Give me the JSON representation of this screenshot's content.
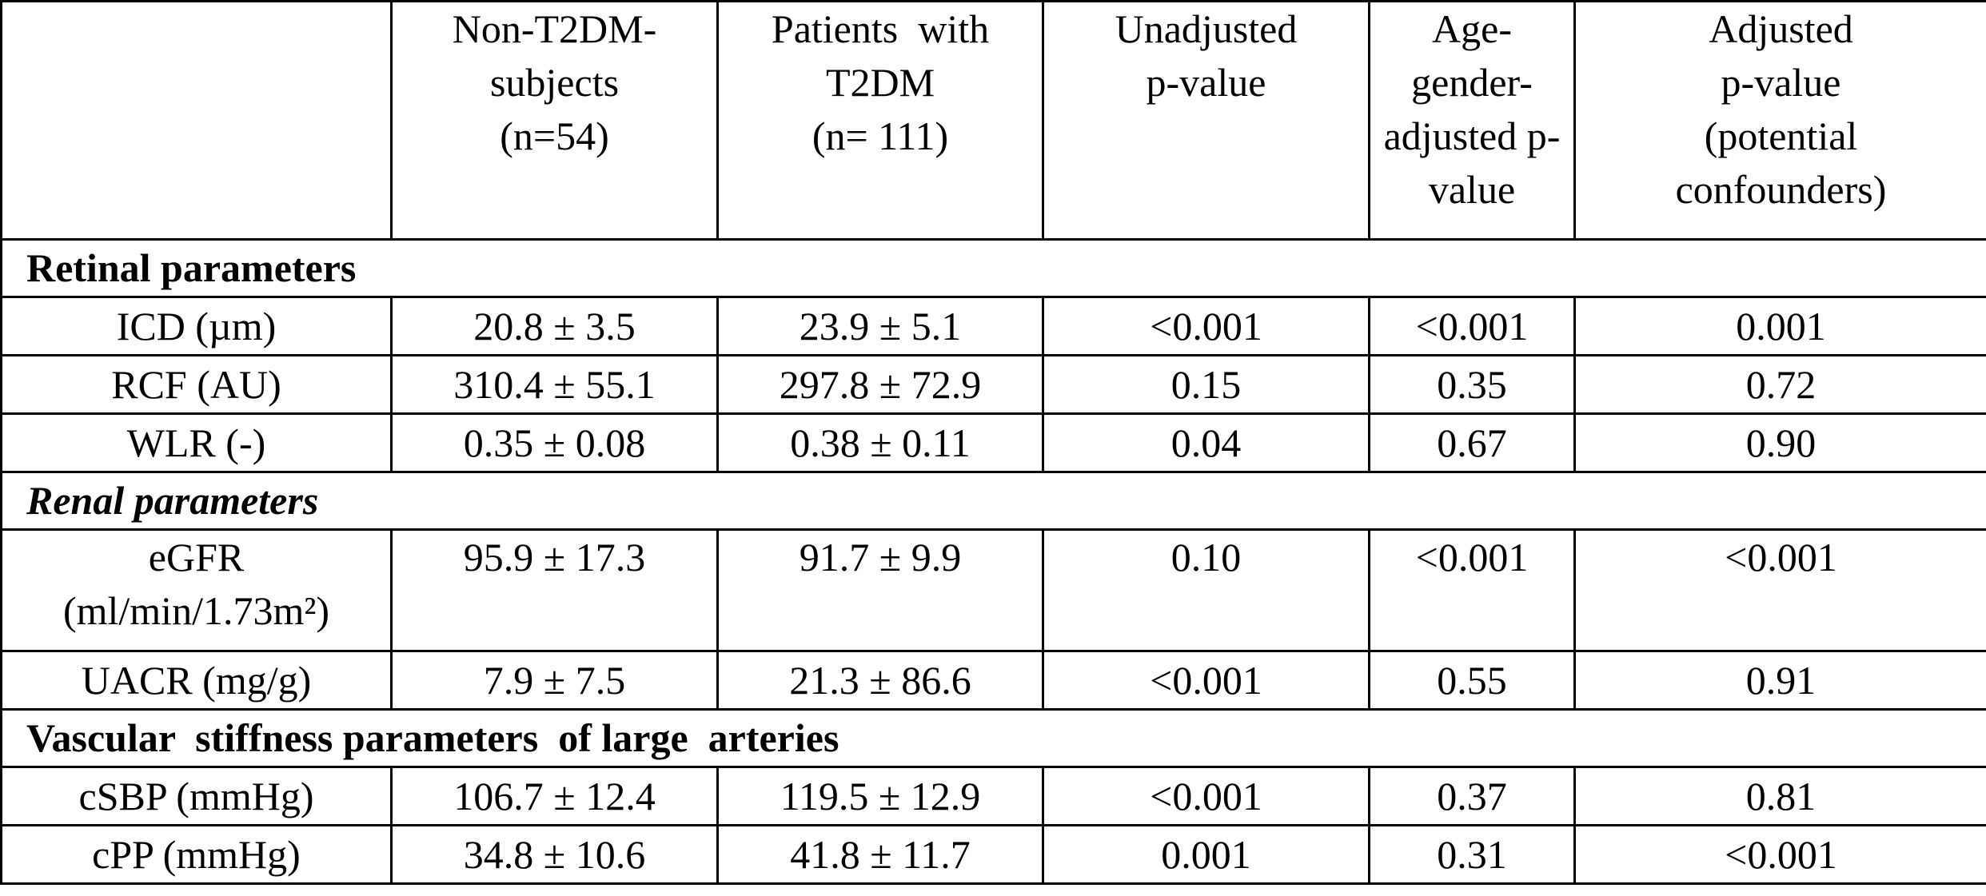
{
  "columns": {
    "c1": [
      "Non-T2DM-",
      "subjects",
      "(n=54)"
    ],
    "c2": [
      "Patients  with",
      "T2DM",
      "(n= 111)"
    ],
    "c3": [
      "Unadjusted",
      "p-value"
    ],
    "c4": [
      "Age-",
      "gender-",
      "adjusted p-",
      "value"
    ],
    "c5": [
      "Adjusted",
      "p-value",
      "(potential",
      "confounders)"
    ]
  },
  "sections": {
    "retinal": "Retinal parameters",
    "renal": "Renal parameters",
    "vascular": "Vascular  stiffness parameters  of large  arteries"
  },
  "rows": {
    "icd": {
      "label": "ICD (µm)",
      "v1": "20.8 ± 3.5",
      "v2": "23.9 ± 5.1",
      "p1": "<0.001",
      "p2": "<0.001",
      "p3": "0.001"
    },
    "rcf": {
      "label": "RCF (AU)",
      "v1": "310.4 ± 55.1",
      "v2": "297.8 ± 72.9",
      "p1": "0.15",
      "p2": "0.35",
      "p3": "0.72"
    },
    "wlr": {
      "label": "WLR (-)",
      "v1": "0.35 ± 0.08",
      "v2": "0.38 ± 0.11",
      "p1": "0.04",
      "p2": "0.67",
      "p3": "0.90"
    },
    "egfr": {
      "label1": "eGFR",
      "label2": "(ml/min/1.73m²)",
      "v1": "95.9 ± 17.3",
      "v2": "91.7 ± 9.9",
      "p1": "0.10",
      "p2": "<0.001",
      "p3": "<0.001"
    },
    "uacr": {
      "label": "UACR (mg/g)",
      "v1": "7.9 ± 7.5",
      "v2": "21.3 ± 86.6",
      "p1": "<0.001",
      "p2": "0.55",
      "p3": "0.91"
    },
    "csbp": {
      "label": "cSBP (mmHg)",
      "v1": "106.7 ± 12.4",
      "v2": "119.5 ± 12.9",
      "p1": "<0.001",
      "p2": "0.37",
      "p3": "0.81"
    },
    "cpp": {
      "label": "cPP (mmHg)",
      "v1": "34.8 ± 10.6",
      "v2": "41.8 ± 11.7",
      "p1": "0.001",
      "p2": "0.31",
      "p3": "<0.001"
    }
  }
}
